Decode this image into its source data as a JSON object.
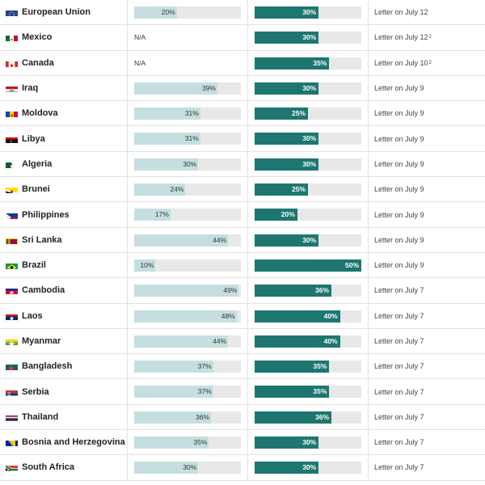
{
  "rows": [
    {
      "country": "European Union",
      "flag": "eu-flag-icon",
      "prev": "20%",
      "prev_value": 20,
      "new": "30%",
      "new_value": 30,
      "letter": "Letter on July 12",
      "note": ""
    },
    {
      "country": "Mexico",
      "flag": "mexico-flag-icon",
      "prev": "N/A",
      "prev_value": null,
      "new": "30%",
      "new_value": 30,
      "letter": "Letter on July 12",
      "note": "2"
    },
    {
      "country": "Canada",
      "flag": "canada-flag-icon",
      "prev": "N/A",
      "prev_value": null,
      "new": "35%",
      "new_value": 35,
      "letter": "Letter on July 10",
      "note": "2"
    },
    {
      "country": "Iraq",
      "flag": "iraq-flag-icon",
      "prev": "39%",
      "prev_value": 39,
      "new": "30%",
      "new_value": 30,
      "letter": "Letter on July 9",
      "note": ""
    },
    {
      "country": "Moldova",
      "flag": "moldova-flag-icon",
      "prev": "31%",
      "prev_value": 31,
      "new": "25%",
      "new_value": 25,
      "letter": "Letter on July 9",
      "note": ""
    },
    {
      "country": "Libya",
      "flag": "libya-flag-icon",
      "prev": "31%",
      "prev_value": 31,
      "new": "30%",
      "new_value": 30,
      "letter": "Letter on July 9",
      "note": ""
    },
    {
      "country": "Algeria",
      "flag": "algeria-flag-icon",
      "prev": "30%",
      "prev_value": 30,
      "new": "30%",
      "new_value": 30,
      "letter": "Letter on July 9",
      "note": ""
    },
    {
      "country": "Brunei",
      "flag": "brunei-flag-icon",
      "prev": "24%",
      "prev_value": 24,
      "new": "25%",
      "new_value": 25,
      "letter": "Letter on July 9",
      "note": ""
    },
    {
      "country": "Philippines",
      "flag": "philippines-flag-icon",
      "prev": "17%",
      "prev_value": 17,
      "new": "20%",
      "new_value": 20,
      "letter": "Letter on July 9",
      "note": ""
    },
    {
      "country": "Sri Lanka",
      "flag": "sri-lanka-flag-icon",
      "prev": "44%",
      "prev_value": 44,
      "new": "30%",
      "new_value": 30,
      "letter": "Letter on July 9",
      "note": ""
    },
    {
      "country": "Brazil",
      "flag": "brazil-flag-icon",
      "prev": "10%",
      "prev_value": 10,
      "new": "50%",
      "new_value": 50,
      "letter": "Letter on July 9",
      "note": ""
    },
    {
      "country": "Cambodia",
      "flag": "cambodia-flag-icon",
      "prev": "49%",
      "prev_value": 49,
      "new": "36%",
      "new_value": 36,
      "letter": "Letter on July 7",
      "note": ""
    },
    {
      "country": "Laos",
      "flag": "laos-flag-icon",
      "prev": "48%",
      "prev_value": 48,
      "new": "40%",
      "new_value": 40,
      "letter": "Letter on July 7",
      "note": ""
    },
    {
      "country": "Myanmar",
      "flag": "myanmar-flag-icon",
      "prev": "44%",
      "prev_value": 44,
      "new": "40%",
      "new_value": 40,
      "letter": "Letter on July 7",
      "note": ""
    },
    {
      "country": "Bangladesh",
      "flag": "bangladesh-flag-icon",
      "prev": "37%",
      "prev_value": 37,
      "new": "35%",
      "new_value": 35,
      "letter": "Letter on July 7",
      "note": ""
    },
    {
      "country": "Serbia",
      "flag": "serbia-flag-icon",
      "prev": "37%",
      "prev_value": 37,
      "new": "35%",
      "new_value": 35,
      "letter": "Letter on July 7",
      "note": ""
    },
    {
      "country": "Thailand",
      "flag": "thailand-flag-icon",
      "prev": "36%",
      "prev_value": 36,
      "new": "36%",
      "new_value": 36,
      "letter": "Letter on July 7",
      "note": ""
    },
    {
      "country": "Bosnia and Herzegovina",
      "flag": "bosnia-flag-icon",
      "prev": "35%",
      "prev_value": 35,
      "new": "30%",
      "new_value": 30,
      "letter": "Letter on July 7",
      "note": ""
    },
    {
      "country": "South Africa",
      "flag": "south-africa-flag-icon",
      "prev": "30%",
      "prev_value": 30,
      "new": "30%",
      "new_value": 30,
      "letter": "Letter on July 7",
      "note": ""
    }
  ],
  "scale_max": 50,
  "colors": {
    "prev_fill": "#c5dfe0",
    "new_fill": "#1e7670",
    "track": "#e8e8e8"
  }
}
